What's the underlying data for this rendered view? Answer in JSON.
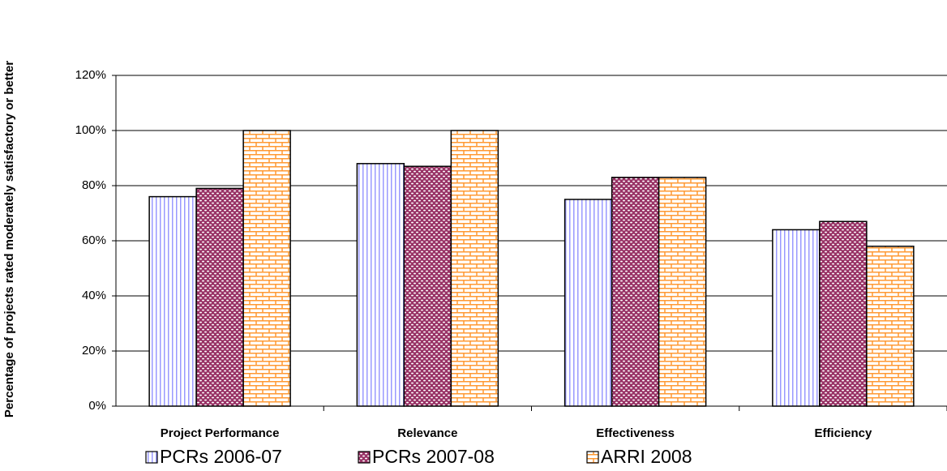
{
  "chart_data": {
    "type": "bar",
    "ylabel": "Percentage of projects rated moderately satisfactory or better",
    "categories": [
      "Project Performance",
      "Relevance",
      "Effectiveness",
      "Efficiency"
    ],
    "series": [
      {
        "name": "PCRs 2006-07",
        "color": "#9999ff",
        "pattern": "vertical",
        "values": [
          76,
          88,
          75,
          64
        ]
      },
      {
        "name": "PCRs 2007-08",
        "color": "#993366",
        "pattern": "dots",
        "values": [
          79,
          87,
          83,
          67
        ]
      },
      {
        "name": "ARRI 2008",
        "color": "#ff9933",
        "pattern": "brick",
        "values": [
          100,
          100,
          83,
          58
        ]
      }
    ],
    "ylim": [
      0,
      120
    ],
    "yticks": [
      {
        "value": 0,
        "label": "0%"
      },
      {
        "value": 20,
        "label": "20%"
      },
      {
        "value": 40,
        "label": "40%"
      },
      {
        "value": 60,
        "label": "60%"
      },
      {
        "value": 80,
        "label": "80%"
      },
      {
        "value": 100,
        "label": "100%"
      },
      {
        "value": 120,
        "label": "120%"
      }
    ],
    "grid": true,
    "legend": "bottom"
  }
}
